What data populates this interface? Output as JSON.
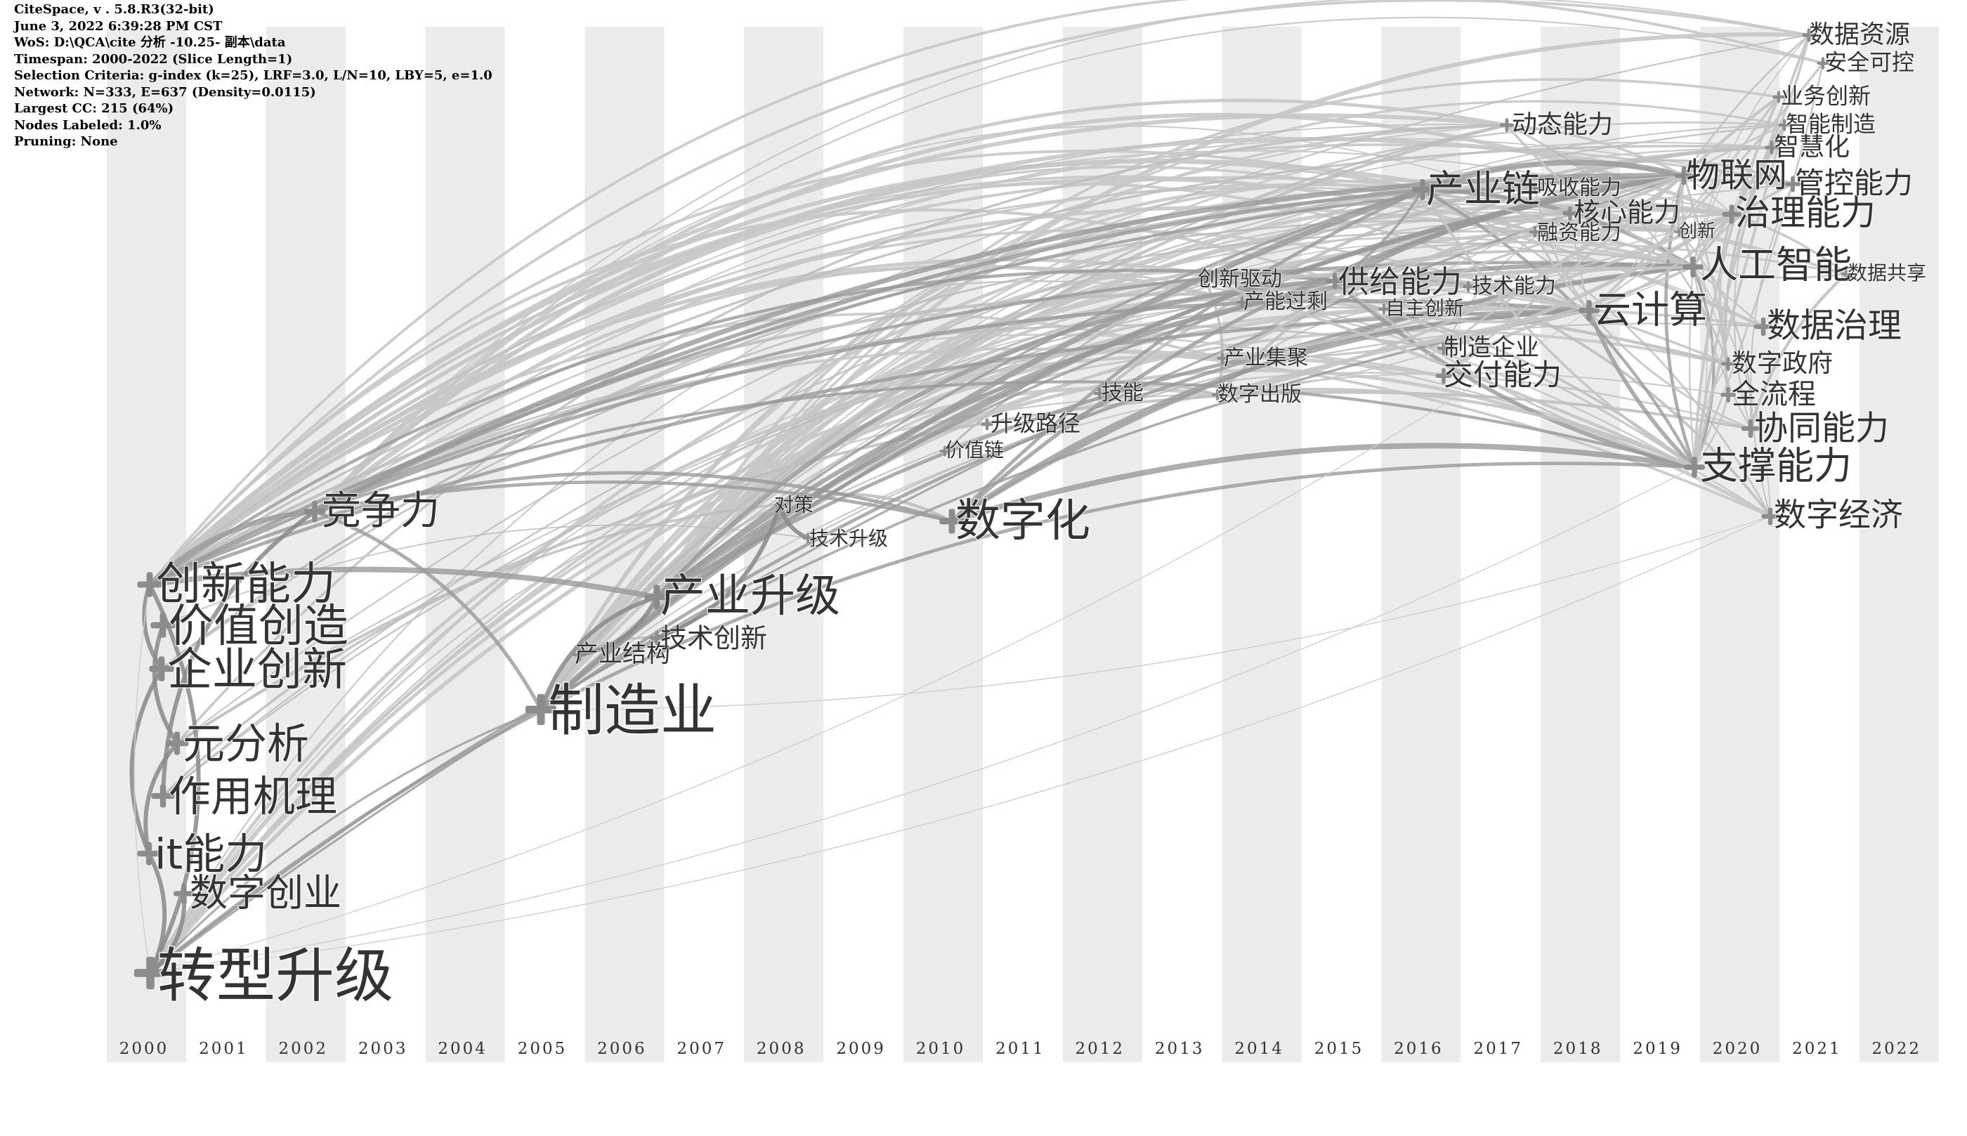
{
  "info": {
    "lines": [
      "CiteSpace, v . 5.8.R3(32-bit)",
      "June 3, 2022 6:39:28 PM CST",
      "WoS: D:\\QCA\\cite 分析 -10.25- 副本\\data",
      "Timespan: 2000-2022 (Slice Length=1)",
      "Selection Criteria: g-index (k=25), LRF=3.0, L/N=10, LBY=5, e=1.0",
      "Network: N=333, E=637 (Density=0.0115)",
      "Largest CC: 215 (64%)",
      "Nodes Labeled: 1.0%",
      "Pruning: None"
    ]
  },
  "timeline": {
    "years": [
      "2000",
      "2001",
      "2002",
      "2003",
      "2004",
      "2005",
      "2006",
      "2007",
      "2008",
      "2009",
      "2010",
      "2011",
      "2012",
      "2013",
      "2014",
      "2015",
      "2016",
      "2017",
      "2018",
      "2019",
      "2020",
      "2021",
      "2022"
    ]
  },
  "keywords": [
    {
      "label": "转型升级",
      "year": 2000,
      "size": 84
    },
    {
      "label": "创新能力",
      "year": 2000,
      "size": 64
    },
    {
      "label": "价值创造",
      "year": 2000,
      "size": 64
    },
    {
      "label": "企业创新",
      "year": 2000,
      "size": 64
    },
    {
      "label": "元分析",
      "year": 2000,
      "size": 60
    },
    {
      "label": "作用机理",
      "year": 2000,
      "size": 60
    },
    {
      "label": "it能力",
      "year": 2000,
      "size": 60
    },
    {
      "label": "数字创业",
      "year": 2000,
      "size": 54
    },
    {
      "label": "竞争力",
      "year": 2002,
      "size": 56
    },
    {
      "label": "制造业",
      "year": 2005,
      "size": 80
    },
    {
      "label": "产业结构",
      "year": 2005,
      "size": 34
    },
    {
      "label": "产业升级",
      "year": 2006,
      "size": 64
    },
    {
      "label": "技术创新",
      "year": 2006,
      "size": 38
    },
    {
      "label": "对策",
      "year": 2008,
      "size": 28
    },
    {
      "label": "技术升级",
      "year": 2008,
      "size": 28
    },
    {
      "label": "数字化",
      "year": 2010,
      "size": 64
    },
    {
      "label": "价值链",
      "year": 2010,
      "size": 28
    },
    {
      "label": "升级路径",
      "year": 2011,
      "size": 32
    },
    {
      "label": "技能",
      "year": 2012,
      "size": 30
    },
    {
      "label": "创新驱动",
      "year": 2013,
      "size": 30
    },
    {
      "label": "产能过剩",
      "year": 2013,
      "size": 30
    },
    {
      "label": "产业集聚",
      "year": 2013,
      "size": 30
    },
    {
      "label": "数字出版",
      "year": 2013,
      "size": 30
    },
    {
      "label": "供给能力",
      "year": 2015,
      "size": 44
    },
    {
      "label": "自主创新",
      "year": 2015,
      "size": 28
    },
    {
      "label": "技术能力",
      "year": 2016,
      "size": 30
    },
    {
      "label": "制造企业",
      "year": 2016,
      "size": 34
    },
    {
      "label": "交付能力",
      "year": 2016,
      "size": 42
    },
    {
      "label": "产业链",
      "year": 2016,
      "size": 54
    },
    {
      "label": "动态能力",
      "year": 2016,
      "size": 36
    },
    {
      "label": "吸收能力",
      "year": 2017,
      "size": 30
    },
    {
      "label": "核心能力",
      "year": 2017,
      "size": 38
    },
    {
      "label": "融资能力",
      "year": 2017,
      "size": 30
    },
    {
      "label": "云计算",
      "year": 2018,
      "size": 54
    },
    {
      "label": "物联网",
      "year": 2019,
      "size": 48
    },
    {
      "label": "创新",
      "year": 2019,
      "size": 26
    },
    {
      "label": "人工智能",
      "year": 2019,
      "size": 54
    },
    {
      "label": "治理能力",
      "year": 2019,
      "size": 50
    },
    {
      "label": "支撑能力",
      "year": 2019,
      "size": 54
    },
    {
      "label": "数据治理",
      "year": 2020,
      "size": 48
    },
    {
      "label": "数字政府",
      "year": 2020,
      "size": 36
    },
    {
      "label": "全流程",
      "year": 2020,
      "size": 40
    },
    {
      "label": "协同能力",
      "year": 2020,
      "size": 48
    },
    {
      "label": "数字经济",
      "year": 2020,
      "size": 46
    },
    {
      "label": "管控能力",
      "year": 2020,
      "size": 42
    },
    {
      "label": "业务创新",
      "year": 2020,
      "size": 32
    },
    {
      "label": "智能制造",
      "year": 2020,
      "size": 32
    },
    {
      "label": "智慧化",
      "year": 2020,
      "size": 36
    },
    {
      "label": "数据资源",
      "year": 2021,
      "size": 36
    },
    {
      "label": "安全可控",
      "year": 2021,
      "size": 32
    },
    {
      "label": "数据共享",
      "year": 2021,
      "size": 28
    }
  ]
}
